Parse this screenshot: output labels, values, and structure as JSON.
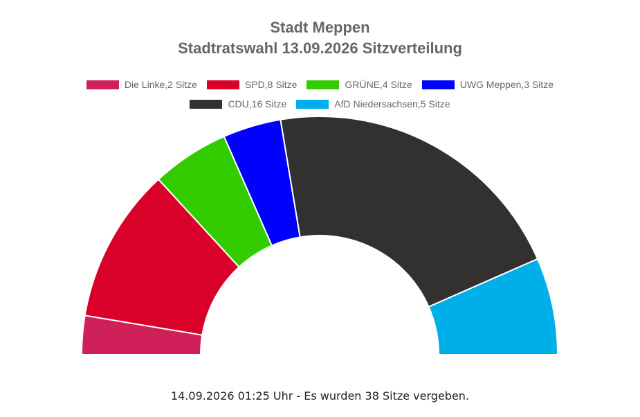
{
  "chart_data": {
    "type": "pie",
    "subtype": "semicircle-parliament",
    "title": "Stadt Meppen",
    "subtitle": "Stadtratswahl 13.09.2026 Sitzverteilung",
    "series": [
      {
        "name": "Die Linke",
        "legend": "Die Linke,2 Sitze",
        "value": 2,
        "color": "#d0205a"
      },
      {
        "name": "SPD",
        "legend": "SPD,8 Sitze",
        "value": 8,
        "color": "#d9002a"
      },
      {
        "name": "GRÜNE",
        "legend": "GRÜNE,4 Sitze",
        "value": 4,
        "color": "#33cc00"
      },
      {
        "name": "UWG Meppen",
        "legend": "UWG Meppen,3 Sitze",
        "value": 3,
        "color": "#0000ff"
      },
      {
        "name": "CDU",
        "legend": "CDU,16 Sitze",
        "value": 16,
        "color": "#333030"
      },
      {
        "name": "AfD Niedersachsen",
        "legend": "AfD Niedersachsen,5 Sitze",
        "value": 5,
        "color": "#00aeea"
      }
    ],
    "legend_position": "top",
    "total_seats": 38
  },
  "footer": "14.09.2026 01:25 Uhr - Es wurden 38 Sitze vergeben."
}
